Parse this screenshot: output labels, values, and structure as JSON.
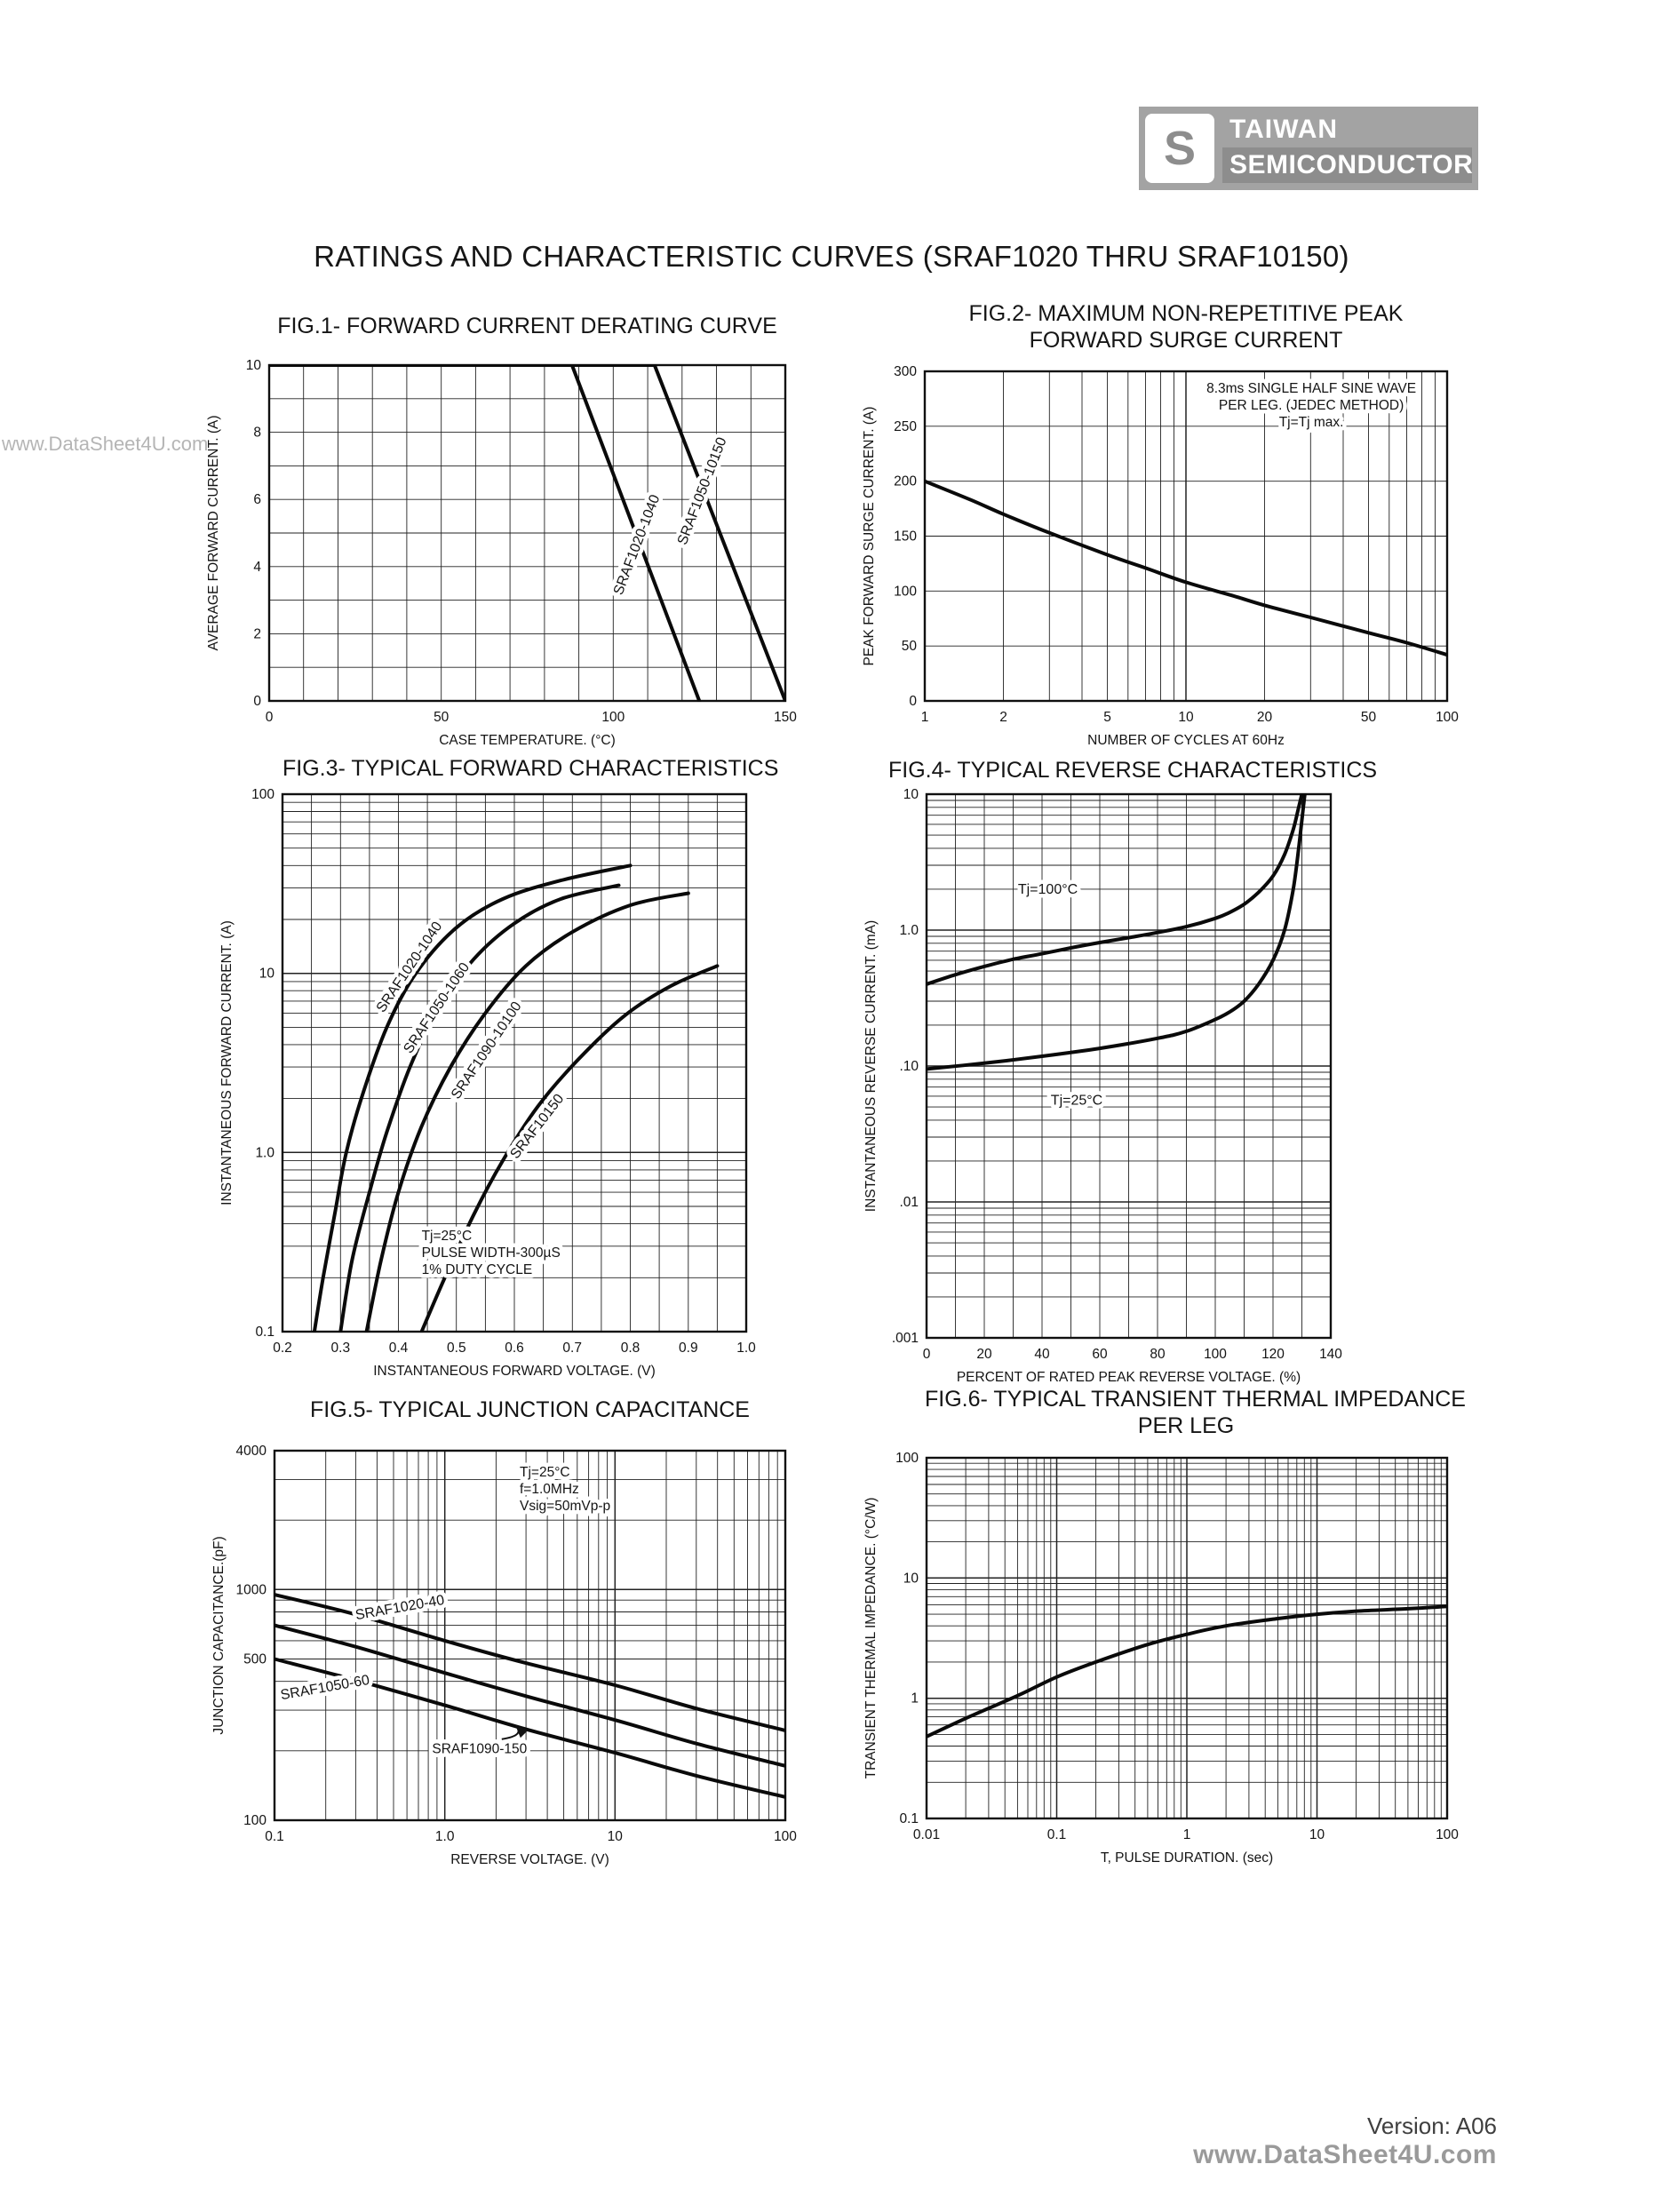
{
  "page": {
    "title": "RATINGS AND CHARACTERISTIC CURVES (SRAF1020 THRU SRAF10150)",
    "watermark_left": "www.DataSheet4U.com"
  },
  "logo": {
    "name_top": "TAIWAN",
    "name_bottom": "SEMICONDUCTOR",
    "monogram": "S"
  },
  "footer": {
    "version": "Version: A06",
    "watermark": "www.DataSheet4U.com"
  },
  "chart_data": [
    {
      "id": "fig1",
      "type": "line",
      "title": "FIG.1- FORWARD CURRENT DERATING CURVE",
      "x": {
        "scale": "linear",
        "min": 0,
        "max": 150,
        "grid_step": 10,
        "label": "CASE TEMPERATURE. (°C)",
        "ticks": [
          [
            "0",
            0
          ],
          [
            "50",
            50
          ],
          [
            "100",
            100
          ],
          [
            "150",
            150
          ]
        ]
      },
      "y": {
        "scale": "linear",
        "min": 0,
        "max": 10,
        "grid_step": 1,
        "label": "AVERAGE FORWARD CURRENT. (A)",
        "ticks": [
          [
            "0",
            0
          ],
          [
            "2",
            2
          ],
          [
            "4",
            4
          ],
          [
            "6",
            6
          ],
          [
            "8",
            8
          ],
          [
            "10",
            10
          ]
        ]
      },
      "series": [
        {
          "name": "SRAF1020-1040",
          "smooth": false,
          "points": [
            [
              0,
              10
            ],
            [
              88,
              10
            ],
            [
              125,
              0
            ]
          ],
          "label": {
            "x": 108,
            "y": 4.6,
            "rotate": -69
          }
        },
        {
          "name": "SRAF1050-10150",
          "smooth": false,
          "points": [
            [
              0,
              10
            ],
            [
              112,
              10
            ],
            [
              150,
              0
            ]
          ],
          "label": {
            "x": 127,
            "y": 6.2,
            "rotate": -69
          }
        }
      ],
      "annotations": []
    },
    {
      "id": "fig2",
      "type": "line",
      "title": "FIG.2- MAXIMUM NON-REPETITIVE PEAK",
      "title2": "FORWARD SURGE CURRENT",
      "x": {
        "scale": "log",
        "min": 1,
        "max": 100,
        "label": "NUMBER OF CYCLES AT 60Hz",
        "ticks": [
          [
            "1",
            1
          ],
          [
            "2",
            2
          ],
          [
            "5",
            5
          ],
          [
            "10",
            10
          ],
          [
            "20",
            20
          ],
          [
            "50",
            50
          ],
          [
            "100",
            100
          ]
        ]
      },
      "y": {
        "scale": "linear",
        "min": 0,
        "max": 300,
        "grid_step": 50,
        "label": "PEAK FORWARD SURGE CURRENT. (A)",
        "ticks": [
          [
            "0",
            0
          ],
          [
            "50",
            50
          ],
          [
            "100",
            100
          ],
          [
            "150",
            150
          ],
          [
            "200",
            200
          ],
          [
            "250",
            250
          ],
          [
            "300",
            300
          ]
        ]
      },
      "series": [
        {
          "name": "surge-current",
          "smooth": true,
          "points": [
            [
              1,
              200
            ],
            [
              1.5,
              183
            ],
            [
              2,
              170
            ],
            [
              3,
              153
            ],
            [
              5,
              133
            ],
            [
              7,
              121
            ],
            [
              10,
              108
            ],
            [
              15,
              96
            ],
            [
              20,
              87
            ],
            [
              30,
              76
            ],
            [
              50,
              62
            ],
            [
              70,
              53
            ],
            [
              100,
              42
            ]
          ]
        }
      ],
      "annotations": [
        {
          "coords": "frac",
          "x": 0.74,
          "y": 0.065,
          "anchor": "middle",
          "lines": [
            "8.3ms SINGLE HALF SINE WAVE",
            "PER LEG. (JEDEC METHOD)",
            "Tj=Tj max."
          ]
        }
      ]
    },
    {
      "id": "fig3",
      "type": "line",
      "title": "FIG.3- TYPICAL FORWARD CHARACTERISTICS",
      "x": {
        "scale": "linear",
        "min": 0.2,
        "max": 1.0,
        "grid_step": 0.05,
        "label": "INSTANTANEOUS FORWARD VOLTAGE. (V)",
        "ticks": [
          [
            "0.2",
            0.2
          ],
          [
            "0.3",
            0.3
          ],
          [
            "0.4",
            0.4
          ],
          [
            "0.5",
            0.5
          ],
          [
            "0.6",
            0.6
          ],
          [
            "0.7",
            0.7
          ],
          [
            "0.8",
            0.8
          ],
          [
            "0.9",
            0.9
          ],
          [
            "1.0",
            1.0
          ]
        ]
      },
      "y": {
        "scale": "log",
        "min": 0.1,
        "max": 100,
        "label": "INSTANTANEOUS FORWARD CURRENT. (A)",
        "ticks": [
          [
            "0.1",
            0.1
          ],
          [
            "1.0",
            1
          ],
          [
            "10",
            10
          ],
          [
            "100",
            100
          ]
        ]
      },
      "series": [
        {
          "name": "SRAF1020-1040",
          "smooth": true,
          "points": [
            [
              0.255,
              0.1
            ],
            [
              0.27,
              0.2
            ],
            [
              0.29,
              0.45
            ],
            [
              0.31,
              1.0
            ],
            [
              0.34,
              2.2
            ],
            [
              0.38,
              5
            ],
            [
              0.43,
              10
            ],
            [
              0.5,
              18
            ],
            [
              0.58,
              26
            ],
            [
              0.68,
              33
            ],
            [
              0.8,
              40
            ]
          ],
          "label": {
            "x": 0.425,
            "y": 10.5,
            "rotate": -56
          }
        },
        {
          "name": "SRAF1050-1060",
          "smooth": true,
          "points": [
            [
              0.3,
              0.1
            ],
            [
              0.32,
              0.25
            ],
            [
              0.35,
              0.6
            ],
            [
              0.38,
              1.3
            ],
            [
              0.42,
              3
            ],
            [
              0.47,
              6.5
            ],
            [
              0.53,
              12
            ],
            [
              0.6,
              19
            ],
            [
              0.68,
              26
            ],
            [
              0.78,
              31
            ]
          ],
          "label": {
            "x": 0.472,
            "y": 6.2,
            "rotate": -56
          }
        },
        {
          "name": "SRAF1090-10100",
          "smooth": true,
          "points": [
            [
              0.345,
              0.1
            ],
            [
              0.37,
              0.25
            ],
            [
              0.4,
              0.6
            ],
            [
              0.44,
              1.4
            ],
            [
              0.49,
              3
            ],
            [
              0.55,
              6
            ],
            [
              0.62,
              11
            ],
            [
              0.7,
              17
            ],
            [
              0.8,
              24
            ],
            [
              0.9,
              28
            ]
          ],
          "label": {
            "x": 0.558,
            "y": 3.6,
            "rotate": -56
          }
        },
        {
          "name": "SRAF10150",
          "smooth": true,
          "points": [
            [
              0.44,
              0.1
            ],
            [
              0.48,
              0.2
            ],
            [
              0.53,
              0.45
            ],
            [
              0.58,
              0.9
            ],
            [
              0.64,
              1.8
            ],
            [
              0.71,
              3.3
            ],
            [
              0.79,
              5.8
            ],
            [
              0.87,
              8.5
            ],
            [
              0.95,
              11
            ]
          ],
          "label": {
            "x": 0.645,
            "y": 1.35,
            "rotate": -52
          }
        }
      ],
      "annotations": [
        {
          "coords": "frac",
          "x": 0.3,
          "y": 0.83,
          "anchor": "start",
          "lines": [
            "Tj=25°C",
            "PULSE WIDTH-300µS",
            "1% DUTY CYCLE"
          ]
        }
      ]
    },
    {
      "id": "fig4",
      "type": "line",
      "title": "FIG.4- TYPICAL REVERSE CHARACTERISTICS",
      "x": {
        "scale": "linear",
        "min": 0,
        "max": 140,
        "grid_step": 10,
        "label": "PERCENT OF RATED PEAK REVERSE VOLTAGE. (%)",
        "ticks": [
          [
            "0",
            0
          ],
          [
            "20",
            20
          ],
          [
            "40",
            40
          ],
          [
            "60",
            60
          ],
          [
            "80",
            80
          ],
          [
            "100",
            100
          ],
          [
            "120",
            120
          ],
          [
            "140",
            140
          ]
        ]
      },
      "y": {
        "scale": "log",
        "min": 0.001,
        "max": 10,
        "label": "INSTANTANEOUS REVERSE CURRENT. (mA)",
        "ticks": [
          [
            "10",
            10
          ],
          [
            "1.0",
            1
          ],
          [
            ".10",
            0.1
          ],
          [
            ".01",
            0.01
          ],
          [
            ".001",
            0.001
          ]
        ]
      },
      "series": [
        {
          "name": "Tj=100°C",
          "smooth": true,
          "points": [
            [
              0,
              0.4
            ],
            [
              10,
              0.47
            ],
            [
              20,
              0.54
            ],
            [
              30,
              0.61
            ],
            [
              40,
              0.67
            ],
            [
              50,
              0.74
            ],
            [
              60,
              0.81
            ],
            [
              70,
              0.88
            ],
            [
              80,
              0.96
            ],
            [
              90,
              1.06
            ],
            [
              100,
              1.22
            ],
            [
              105,
              1.35
            ],
            [
              110,
              1.55
            ],
            [
              115,
              1.9
            ],
            [
              120,
              2.5
            ],
            [
              124,
              3.6
            ],
            [
              127,
              5.5
            ],
            [
              129,
              8.2
            ],
            [
              130,
              10
            ]
          ],
          "label": {
            "x": 42,
            "y": 1.85,
            "rotate": 0
          }
        },
        {
          "name": "Tj=25°C",
          "smooth": true,
          "points": [
            [
              0,
              0.095
            ],
            [
              20,
              0.105
            ],
            [
              40,
              0.118
            ],
            [
              60,
              0.135
            ],
            [
              80,
              0.16
            ],
            [
              90,
              0.18
            ],
            [
              100,
              0.22
            ],
            [
              105,
              0.25
            ],
            [
              110,
              0.3
            ],
            [
              115,
              0.4
            ],
            [
              120,
              0.6
            ],
            [
              124,
              1.0
            ],
            [
              127,
              2.0
            ],
            [
              129,
              4.2
            ],
            [
              130.5,
              8
            ],
            [
              131,
              10
            ]
          ],
          "label": {
            "x": 52,
            "y": 0.052,
            "rotate": 0
          }
        }
      ],
      "annotations": []
    },
    {
      "id": "fig5",
      "type": "line",
      "title": "FIG.5- TYPICAL JUNCTION CAPACITANCE",
      "x": {
        "scale": "log",
        "min": 0.1,
        "max": 100,
        "label": "REVERSE VOLTAGE. (V)",
        "ticks": [
          [
            "0.1",
            0.1
          ],
          [
            "1.0",
            1
          ],
          [
            "10",
            10
          ],
          [
            "100",
            100
          ]
        ]
      },
      "y": {
        "scale": "log",
        "min": 100,
        "max": 4000,
        "label": "JUNCTION CAPACITANCE.(pF)",
        "ticks": [
          [
            "100",
            100
          ],
          [
            "500",
            500
          ],
          [
            "1000",
            1000
          ],
          [
            "4000",
            4000
          ]
        ]
      },
      "series": [
        {
          "name": "SRAF1020-40",
          "smooth": true,
          "points": [
            [
              0.1,
              950
            ],
            [
              0.3,
              780
            ],
            [
              1,
              600
            ],
            [
              3,
              480
            ],
            [
              10,
              385
            ],
            [
              30,
              305
            ],
            [
              100,
              245
            ]
          ],
          "label": {
            "x": 0.55,
            "y": 800,
            "rotate": -10
          }
        },
        {
          "name": "SRAF1050-60",
          "smooth": true,
          "points": [
            [
              0.1,
              700
            ],
            [
              0.3,
              565
            ],
            [
              1,
              435
            ],
            [
              3,
              345
            ],
            [
              10,
              272
            ],
            [
              30,
              215
            ],
            [
              100,
              172
            ]
          ],
          "label": {
            "x": 0.2,
            "y": 360,
            "rotate": -10
          }
        },
        {
          "name": "SRAF1090-150",
          "smooth": true,
          "points": [
            [
              0.1,
              500
            ],
            [
              0.3,
              405
            ],
            [
              1,
              315
            ],
            [
              3,
              248
            ],
            [
              10,
              196
            ],
            [
              30,
              156
            ],
            [
              100,
              126
            ]
          ]
        }
      ],
      "annotations": [
        {
          "coords": "frac",
          "x": 0.48,
          "y": 0.07,
          "anchor": "start",
          "lines": [
            "Tj=25°C",
            "f=1.0MHz",
            "Vsig=50mVp-p"
          ]
        },
        {
          "coords": "data",
          "x": 1.6,
          "y": 195,
          "anchor": "middle",
          "lines": [
            "SRAF1090-150"
          ],
          "arrow_to": {
            "x": 2.6,
            "y": 258
          }
        }
      ]
    },
    {
      "id": "fig6",
      "type": "line",
      "title": "FIG.6- TYPICAL TRANSIENT THERMAL  IMPEDANCE",
      "title2": "PER LEG",
      "x": {
        "scale": "log",
        "min": 0.01,
        "max": 100,
        "label": "T, PULSE DURATION. (sec)",
        "ticks": [
          [
            "0.01",
            0.01
          ],
          [
            "0.1",
            0.1
          ],
          [
            "1",
            1
          ],
          [
            "10",
            10
          ],
          [
            "100",
            100
          ]
        ]
      },
      "y": {
        "scale": "log",
        "min": 0.1,
        "max": 100,
        "label": "TRANSIENT THERMAL IMPEDANCE. (°C/W)",
        "ticks": [
          [
            "0.1",
            0.1
          ],
          [
            "1",
            1
          ],
          [
            "10",
            10
          ],
          [
            "100",
            100
          ]
        ]
      },
      "series": [
        {
          "name": "transient-thermal-impedance",
          "smooth": true,
          "points": [
            [
              0.01,
              0.48
            ],
            [
              0.02,
              0.68
            ],
            [
              0.05,
              1.05
            ],
            [
              0.1,
              1.5
            ],
            [
              0.2,
              2.0
            ],
            [
              0.5,
              2.8
            ],
            [
              1,
              3.4
            ],
            [
              2,
              4.0
            ],
            [
              5,
              4.6
            ],
            [
              10,
              5.0
            ],
            [
              20,
              5.3
            ],
            [
              50,
              5.55
            ],
            [
              100,
              5.8
            ]
          ]
        }
      ],
      "annotations": []
    }
  ]
}
